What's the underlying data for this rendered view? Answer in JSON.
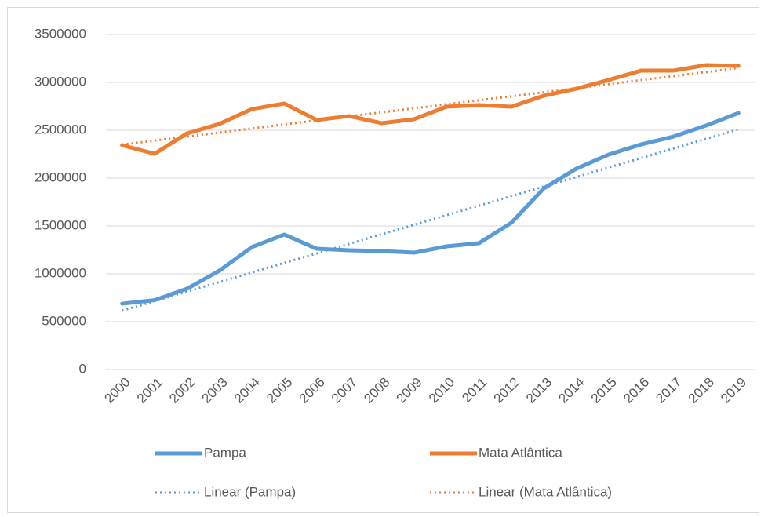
{
  "chart_data": {
    "type": "line",
    "categories": [
      "2000",
      "2001",
      "2002",
      "2003",
      "2004",
      "2005",
      "2006",
      "2007",
      "2008",
      "2009",
      "2010",
      "2011",
      "2012",
      "2013",
      "2014",
      "2015",
      "2016",
      "2017",
      "2018",
      "2019"
    ],
    "series": [
      {
        "name": "Pampa",
        "color": "#5b9bd5",
        "style": "solid",
        "values": [
          688000,
          725000,
          844000,
          1033000,
          1279000,
          1410000,
          1262000,
          1246000,
          1238000,
          1221000,
          1287000,
          1320000,
          1533000,
          1893000,
          2098000,
          2246000,
          2352000,
          2434000,
          2549000,
          2680000
        ]
      },
      {
        "name": "Mata Atlântica",
        "color": "#ed7d31",
        "style": "solid",
        "values": [
          2344000,
          2254000,
          2467000,
          2566000,
          2721000,
          2779000,
          2607000,
          2648000,
          2574000,
          2615000,
          2746000,
          2762000,
          2746000,
          2861000,
          2934000,
          3025000,
          3123000,
          3123000,
          3180000,
          3172000
        ]
      },
      {
        "name": "Linear (Pampa)",
        "color": "#5b9bd5",
        "style": "dotted",
        "values": [
          615000,
          715000,
          814000,
          914000,
          1014000,
          1114000,
          1213000,
          1313000,
          1413000,
          1512000,
          1612000,
          1712000,
          1812000,
          1911000,
          2011000,
          2111000,
          2210000,
          2310000,
          2410000,
          2510000
        ]
      },
      {
        "name": "Linear (Mata Atlântica)",
        "color": "#ed7d31",
        "style": "dotted",
        "values": [
          2350000,
          2392000,
          2434000,
          2476000,
          2518000,
          2561000,
          2603000,
          2645000,
          2687000,
          2729000,
          2771000,
          2813000,
          2855000,
          2897000,
          2939000,
          2982000,
          3024000,
          3066000,
          3108000,
          3150000
        ]
      }
    ],
    "ylim": [
      0,
      3500000
    ],
    "yticks": [
      0,
      500000,
      1000000,
      1500000,
      2000000,
      2500000,
      3000000,
      3500000
    ],
    "grid": true,
    "legend": "bottom"
  }
}
